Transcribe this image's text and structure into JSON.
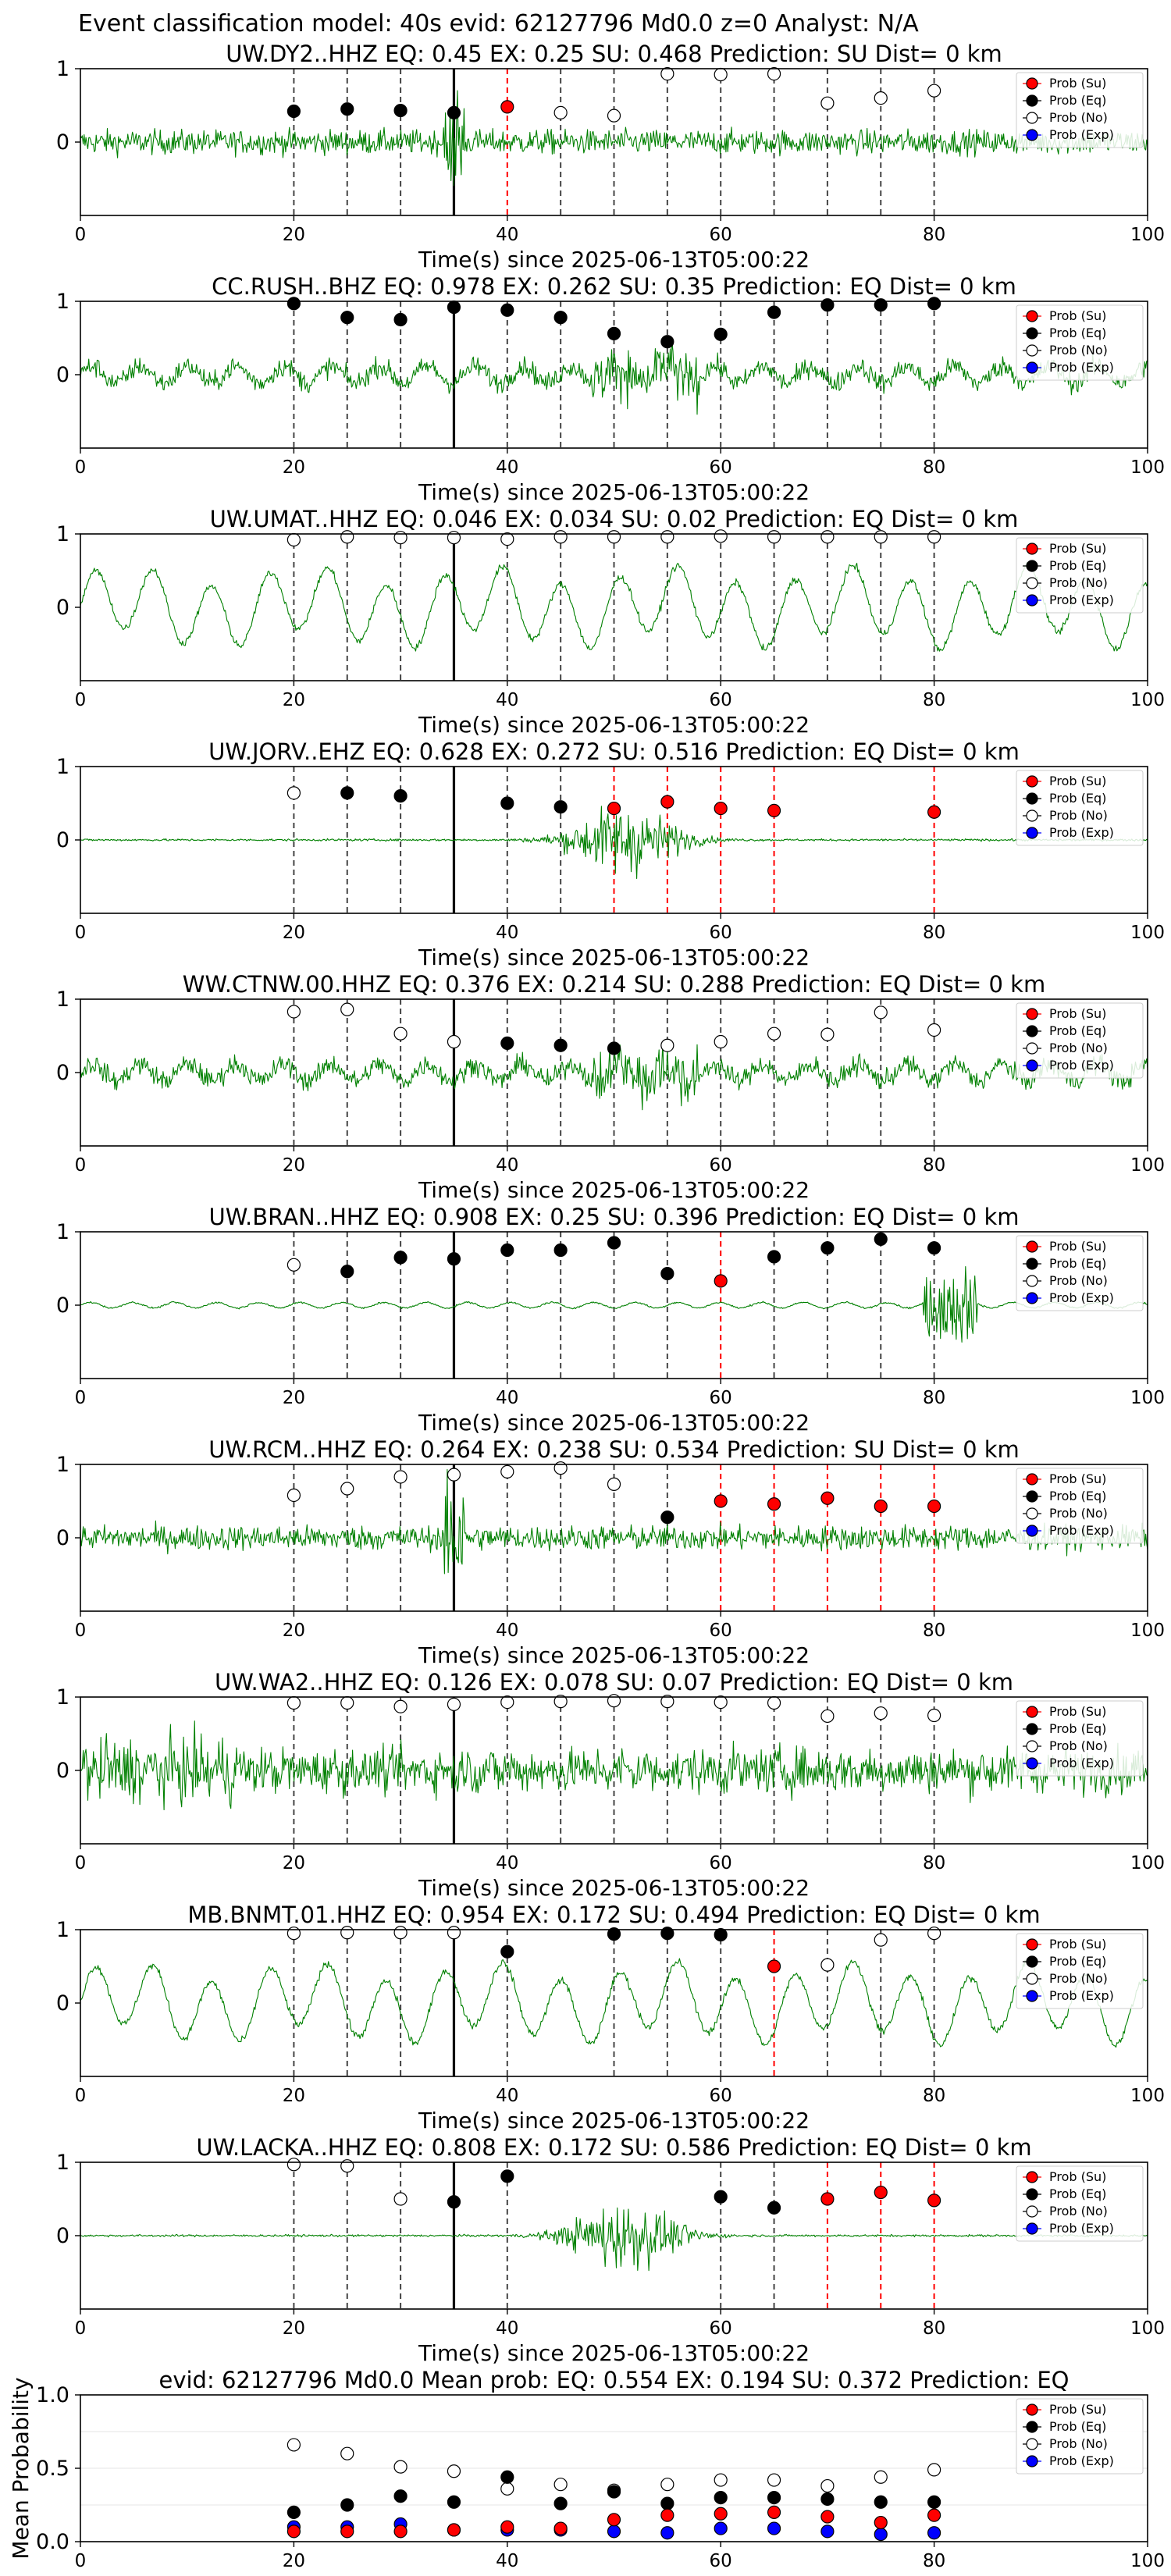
{
  "figure": {
    "suptitle": "Event classification model: 40s evid: 62127796 Md0.0 z=0 Analyst: N/A"
  },
  "legend": [
    "Prob (Su)",
    "Prob (Eq)",
    "Prob (No)",
    "Prob (Exp)"
  ],
  "colors": {
    "trace": "#008000",
    "su": "#ff0000",
    "eq": "#000000",
    "no": "#ffffff",
    "exp": "#0000ff",
    "pick": "#000000"
  },
  "chart_data": [
    {
      "type": "line",
      "title": "UW.DY2..HHZ   EQ: 0.45  EX: 0.25  SU: 0.468   Prediction: SU    Dist= 0 km",
      "xlabel": "Time(s) since 2025-06-13T05:00:22",
      "xlim": [
        0,
        100
      ],
      "ylim": [
        -1,
        1
      ],
      "x_ticks": [
        0,
        20,
        40,
        60,
        80,
        100
      ],
      "y_ticks": [
        0,
        1
      ],
      "pick_time": 35,
      "amplitude": "noisy",
      "points": [
        {
          "x": 20,
          "y": 0.42,
          "c": "eq"
        },
        {
          "x": 25,
          "y": 0.45,
          "c": "eq"
        },
        {
          "x": 30,
          "y": 0.43,
          "c": "eq"
        },
        {
          "x": 35,
          "y": 0.4,
          "c": "eq"
        },
        {
          "x": 40,
          "y": 0.48,
          "c": "su"
        },
        {
          "x": 45,
          "y": 0.4,
          "c": "no"
        },
        {
          "x": 50,
          "y": 0.36,
          "c": "no"
        },
        {
          "x": 55,
          "y": 0.93,
          "c": "no"
        },
        {
          "x": 60,
          "y": 0.92,
          "c": "no"
        },
        {
          "x": 65,
          "y": 0.93,
          "c": "no"
        },
        {
          "x": 70,
          "y": 0.53,
          "c": "no"
        },
        {
          "x": 75,
          "y": 0.6,
          "c": "no"
        },
        {
          "x": 80,
          "y": 0.7,
          "c": "no"
        }
      ]
    },
    {
      "type": "line",
      "title": "CC.RUSH..BHZ   EQ: 0.978  EX: 0.262  SU: 0.35   Prediction: EQ    Dist= 0 km",
      "xlabel": "Time(s) since 2025-06-13T05:00:22",
      "xlim": [
        0,
        100
      ],
      "ylim": [
        -1,
        1
      ],
      "x_ticks": [
        0,
        20,
        40,
        60,
        80,
        100
      ],
      "y_ticks": [
        0,
        1
      ],
      "pick_time": 35,
      "amplitude": "medium",
      "points": [
        {
          "x": 20,
          "y": 0.97,
          "c": "eq"
        },
        {
          "x": 25,
          "y": 0.78,
          "c": "eq"
        },
        {
          "x": 30,
          "y": 0.75,
          "c": "eq"
        },
        {
          "x": 35,
          "y": 0.92,
          "c": "eq"
        },
        {
          "x": 40,
          "y": 0.88,
          "c": "eq"
        },
        {
          "x": 45,
          "y": 0.78,
          "c": "eq"
        },
        {
          "x": 50,
          "y": 0.56,
          "c": "eq"
        },
        {
          "x": 55,
          "y": 0.45,
          "c": "eq"
        },
        {
          "x": 60,
          "y": 0.55,
          "c": "eq"
        },
        {
          "x": 65,
          "y": 0.85,
          "c": "eq"
        },
        {
          "x": 70,
          "y": 0.95,
          "c": "eq"
        },
        {
          "x": 75,
          "y": 0.95,
          "c": "eq"
        },
        {
          "x": 80,
          "y": 0.97,
          "c": "eq"
        }
      ]
    },
    {
      "type": "line",
      "title": "UW.UMAT..HHZ   EQ: 0.046  EX: 0.034  SU: 0.02   Prediction: EQ    Dist= 0 km",
      "xlabel": "Time(s) since 2025-06-13T05:00:22",
      "xlim": [
        0,
        100
      ],
      "ylim": [
        -1,
        1
      ],
      "x_ticks": [
        0,
        20,
        40,
        60,
        80,
        100
      ],
      "y_ticks": [
        0,
        1
      ],
      "pick_time": 35,
      "amplitude": "wave",
      "points": [
        {
          "x": 20,
          "y": 0.92,
          "c": "no"
        },
        {
          "x": 25,
          "y": 0.96,
          "c": "no"
        },
        {
          "x": 30,
          "y": 0.95,
          "c": "no"
        },
        {
          "x": 35,
          "y": 0.95,
          "c": "no"
        },
        {
          "x": 40,
          "y": 0.93,
          "c": "no"
        },
        {
          "x": 45,
          "y": 0.96,
          "c": "no"
        },
        {
          "x": 50,
          "y": 0.96,
          "c": "no"
        },
        {
          "x": 55,
          "y": 0.96,
          "c": "no"
        },
        {
          "x": 60,
          "y": 0.97,
          "c": "no"
        },
        {
          "x": 65,
          "y": 0.96,
          "c": "no"
        },
        {
          "x": 70,
          "y": 0.96,
          "c": "no"
        },
        {
          "x": 75,
          "y": 0.96,
          "c": "no"
        },
        {
          "x": 80,
          "y": 0.96,
          "c": "no"
        }
      ]
    },
    {
      "type": "line",
      "title": "UW.JORV..EHZ   EQ: 0.628  EX: 0.272  SU: 0.516   Prediction: EQ    Dist= 0 km",
      "xlabel": "Time(s) since 2025-06-13T05:00:22",
      "xlim": [
        0,
        100
      ],
      "ylim": [
        -1,
        1
      ],
      "x_ticks": [
        0,
        20,
        40,
        60,
        80,
        100
      ],
      "y_ticks": [
        0,
        1
      ],
      "pick_time": 35,
      "amplitude": "event",
      "points": [
        {
          "x": 20,
          "y": 0.64,
          "c": "no"
        },
        {
          "x": 25,
          "y": 0.64,
          "c": "eq"
        },
        {
          "x": 30,
          "y": 0.6,
          "c": "eq"
        },
        {
          "x": 40,
          "y": 0.5,
          "c": "eq"
        },
        {
          "x": 45,
          "y": 0.45,
          "c": "eq"
        },
        {
          "x": 50,
          "y": 0.43,
          "c": "su"
        },
        {
          "x": 55,
          "y": 0.52,
          "c": "su"
        },
        {
          "x": 60,
          "y": 0.43,
          "c": "su"
        },
        {
          "x": 65,
          "y": 0.4,
          "c": "su"
        },
        {
          "x": 80,
          "y": 0.38,
          "c": "su"
        }
      ]
    },
    {
      "type": "line",
      "title": "WW.CTNW.00.HHZ   EQ: 0.376  EX: 0.214  SU: 0.288   Prediction: EQ    Dist= 0 km",
      "xlabel": "Time(s) since 2025-06-13T05:00:22",
      "xlim": [
        0,
        100
      ],
      "ylim": [
        -1,
        1
      ],
      "x_ticks": [
        0,
        20,
        40,
        60,
        80,
        100
      ],
      "y_ticks": [
        0,
        1
      ],
      "pick_time": 35,
      "amplitude": "medium",
      "points": [
        {
          "x": 20,
          "y": 0.83,
          "c": "no"
        },
        {
          "x": 25,
          "y": 0.86,
          "c": "no"
        },
        {
          "x": 30,
          "y": 0.53,
          "c": "no"
        },
        {
          "x": 35,
          "y": 0.42,
          "c": "no"
        },
        {
          "x": 40,
          "y": 0.4,
          "c": "eq"
        },
        {
          "x": 45,
          "y": 0.37,
          "c": "eq"
        },
        {
          "x": 50,
          "y": 0.33,
          "c": "eq"
        },
        {
          "x": 55,
          "y": 0.37,
          "c": "no"
        },
        {
          "x": 60,
          "y": 0.42,
          "c": "no"
        },
        {
          "x": 65,
          "y": 0.53,
          "c": "no"
        },
        {
          "x": 70,
          "y": 0.52,
          "c": "no"
        },
        {
          "x": 75,
          "y": 0.82,
          "c": "no"
        },
        {
          "x": 80,
          "y": 0.58,
          "c": "no"
        }
      ]
    },
    {
      "type": "line",
      "title": "UW.BRAN..HHZ   EQ: 0.908  EX: 0.25  SU: 0.396   Prediction: EQ    Dist= 0 km",
      "xlabel": "Time(s) since 2025-06-13T05:00:22",
      "xlim": [
        0,
        100
      ],
      "ylim": [
        -1,
        1
      ],
      "x_ticks": [
        0,
        20,
        40,
        60,
        80,
        100
      ],
      "y_ticks": [
        0,
        1
      ],
      "pick_time": 35,
      "amplitude": "quiet",
      "points": [
        {
          "x": 20,
          "y": 0.55,
          "c": "no"
        },
        {
          "x": 25,
          "y": 0.46,
          "c": "eq"
        },
        {
          "x": 30,
          "y": 0.65,
          "c": "eq"
        },
        {
          "x": 35,
          "y": 0.63,
          "c": "eq"
        },
        {
          "x": 40,
          "y": 0.75,
          "c": "eq"
        },
        {
          "x": 45,
          "y": 0.75,
          "c": "eq"
        },
        {
          "x": 50,
          "y": 0.85,
          "c": "eq"
        },
        {
          "x": 55,
          "y": 0.43,
          "c": "eq"
        },
        {
          "x": 60,
          "y": 0.33,
          "c": "su"
        },
        {
          "x": 65,
          "y": 0.66,
          "c": "eq"
        },
        {
          "x": 70,
          "y": 0.78,
          "c": "eq"
        },
        {
          "x": 75,
          "y": 0.9,
          "c": "eq"
        },
        {
          "x": 80,
          "y": 0.78,
          "c": "eq"
        }
      ]
    },
    {
      "type": "line",
      "title": "UW.RCM..HHZ   EQ: 0.264  EX: 0.238  SU: 0.534   Prediction: SU    Dist= 0 km",
      "xlabel": "Time(s) since 2025-06-13T05:00:22",
      "xlim": [
        0,
        100
      ],
      "ylim": [
        -1,
        1
      ],
      "x_ticks": [
        0,
        20,
        40,
        60,
        80,
        100
      ],
      "y_ticks": [
        0,
        1
      ],
      "pick_time": 35,
      "amplitude": "noisy",
      "points": [
        {
          "x": 20,
          "y": 0.58,
          "c": "no"
        },
        {
          "x": 25,
          "y": 0.67,
          "c": "no"
        },
        {
          "x": 30,
          "y": 0.83,
          "c": "no"
        },
        {
          "x": 35,
          "y": 0.86,
          "c": "no"
        },
        {
          "x": 40,
          "y": 0.9,
          "c": "no"
        },
        {
          "x": 45,
          "y": 0.95,
          "c": "no"
        },
        {
          "x": 50,
          "y": 0.73,
          "c": "no"
        },
        {
          "x": 55,
          "y": 0.28,
          "c": "eq"
        },
        {
          "x": 60,
          "y": 0.5,
          "c": "su"
        },
        {
          "x": 65,
          "y": 0.46,
          "c": "su"
        },
        {
          "x": 70,
          "y": 0.54,
          "c": "su"
        },
        {
          "x": 75,
          "y": 0.43,
          "c": "su"
        },
        {
          "x": 80,
          "y": 0.43,
          "c": "su"
        }
      ]
    },
    {
      "type": "line",
      "title": "UW.WA2..HHZ   EQ: 0.126  EX: 0.078  SU: 0.07   Prediction: EQ    Dist= 0 km",
      "xlabel": "Time(s) since 2025-06-13T05:00:22",
      "xlim": [
        0,
        100
      ],
      "ylim": [
        -1,
        1
      ],
      "x_ticks": [
        0,
        20,
        40,
        60,
        80,
        100
      ],
      "y_ticks": [
        0,
        1
      ],
      "pick_time": 35,
      "amplitude": "heavy",
      "points": [
        {
          "x": 20,
          "y": 0.92,
          "c": "no"
        },
        {
          "x": 25,
          "y": 0.92,
          "c": "no"
        },
        {
          "x": 30,
          "y": 0.87,
          "c": "no"
        },
        {
          "x": 35,
          "y": 0.9,
          "c": "no"
        },
        {
          "x": 40,
          "y": 0.93,
          "c": "no"
        },
        {
          "x": 45,
          "y": 0.94,
          "c": "no"
        },
        {
          "x": 50,
          "y": 0.95,
          "c": "no"
        },
        {
          "x": 55,
          "y": 0.94,
          "c": "no"
        },
        {
          "x": 60,
          "y": 0.93,
          "c": "no"
        },
        {
          "x": 65,
          "y": 0.92,
          "c": "no"
        },
        {
          "x": 70,
          "y": 0.74,
          "c": "no"
        },
        {
          "x": 75,
          "y": 0.78,
          "c": "no"
        },
        {
          "x": 80,
          "y": 0.75,
          "c": "no"
        }
      ]
    },
    {
      "type": "line",
      "title": "MB.BNMT.01.HHZ   EQ: 0.954  EX: 0.172  SU: 0.494   Prediction: EQ    Dist= 0 km",
      "xlabel": "Time(s) since 2025-06-13T05:00:22",
      "xlim": [
        0,
        100
      ],
      "ylim": [
        -1,
        1
      ],
      "x_ticks": [
        0,
        20,
        40,
        60,
        80,
        100
      ],
      "y_ticks": [
        0,
        1
      ],
      "pick_time": 35,
      "amplitude": "wave",
      "points": [
        {
          "x": 20,
          "y": 0.95,
          "c": "no"
        },
        {
          "x": 25,
          "y": 0.96,
          "c": "no"
        },
        {
          "x": 30,
          "y": 0.96,
          "c": "no"
        },
        {
          "x": 35,
          "y": 0.96,
          "c": "no"
        },
        {
          "x": 40,
          "y": 0.7,
          "c": "eq"
        },
        {
          "x": 50,
          "y": 0.94,
          "c": "eq"
        },
        {
          "x": 55,
          "y": 0.95,
          "c": "eq"
        },
        {
          "x": 60,
          "y": 0.93,
          "c": "eq"
        },
        {
          "x": 65,
          "y": 0.5,
          "c": "su"
        },
        {
          "x": 70,
          "y": 0.52,
          "c": "no"
        },
        {
          "x": 75,
          "y": 0.86,
          "c": "no"
        },
        {
          "x": 80,
          "y": 0.95,
          "c": "no"
        }
      ]
    },
    {
      "type": "line",
      "title": "UW.LACKA..HHZ   EQ: 0.808  EX: 0.172  SU: 0.586   Prediction: EQ    Dist= 0 km",
      "xlabel": "Time(s) since 2025-06-13T05:00:22",
      "xlim": [
        0,
        100
      ],
      "ylim": [
        -1,
        1
      ],
      "x_ticks": [
        0,
        20,
        40,
        60,
        80,
        100
      ],
      "y_ticks": [
        0,
        1
      ],
      "pick_time": 35,
      "amplitude": "event",
      "points": [
        {
          "x": 20,
          "y": 0.97,
          "c": "no"
        },
        {
          "x": 25,
          "y": 0.95,
          "c": "no"
        },
        {
          "x": 30,
          "y": 0.5,
          "c": "no"
        },
        {
          "x": 35,
          "y": 0.46,
          "c": "eq"
        },
        {
          "x": 40,
          "y": 0.81,
          "c": "eq"
        },
        {
          "x": 60,
          "y": 0.53,
          "c": "eq"
        },
        {
          "x": 65,
          "y": 0.38,
          "c": "eq"
        },
        {
          "x": 70,
          "y": 0.5,
          "c": "su"
        },
        {
          "x": 75,
          "y": 0.59,
          "c": "su"
        },
        {
          "x": 80,
          "y": 0.48,
          "c": "su"
        }
      ]
    },
    {
      "type": "scatter",
      "title": "evid: 62127796  Md0.0   Mean prob:   EQ: 0.554  EX: 0.194  SU: 0.372   Prediction: EQ",
      "ylabel": "Mean Probability",
      "xlim": [
        0,
        100
      ],
      "ylim": [
        0,
        1
      ],
      "x_ticks": [
        0,
        20,
        40,
        60,
        80,
        100
      ],
      "y_ticks": [
        0.0,
        0.5,
        1.0
      ],
      "x": [
        20,
        25,
        30,
        35,
        40,
        45,
        50,
        55,
        60,
        65,
        70,
        75,
        80
      ],
      "series": [
        {
          "name": "Prob (No)",
          "key": "no",
          "values": [
            0.66,
            0.6,
            0.51,
            0.48,
            0.36,
            0.39,
            0.35,
            0.39,
            0.42,
            0.42,
            0.38,
            0.44,
            0.49
          ]
        },
        {
          "name": "Prob (Eq)",
          "key": "eq",
          "values": [
            0.2,
            0.25,
            0.31,
            0.27,
            0.44,
            0.26,
            0.34,
            0.26,
            0.3,
            0.3,
            0.29,
            0.27,
            0.27
          ]
        },
        {
          "name": "Prob (Exp)",
          "key": "exp",
          "values": [
            0.1,
            0.1,
            0.12,
            0.08,
            0.08,
            0.08,
            0.07,
            0.06,
            0.09,
            0.09,
            0.07,
            0.05,
            0.06
          ]
        },
        {
          "name": "Prob (Su)",
          "key": "su",
          "values": [
            0.07,
            0.07,
            0.07,
            0.08,
            0.1,
            0.09,
            0.15,
            0.18,
            0.19,
            0.2,
            0.17,
            0.13,
            0.18
          ]
        }
      ]
    }
  ]
}
